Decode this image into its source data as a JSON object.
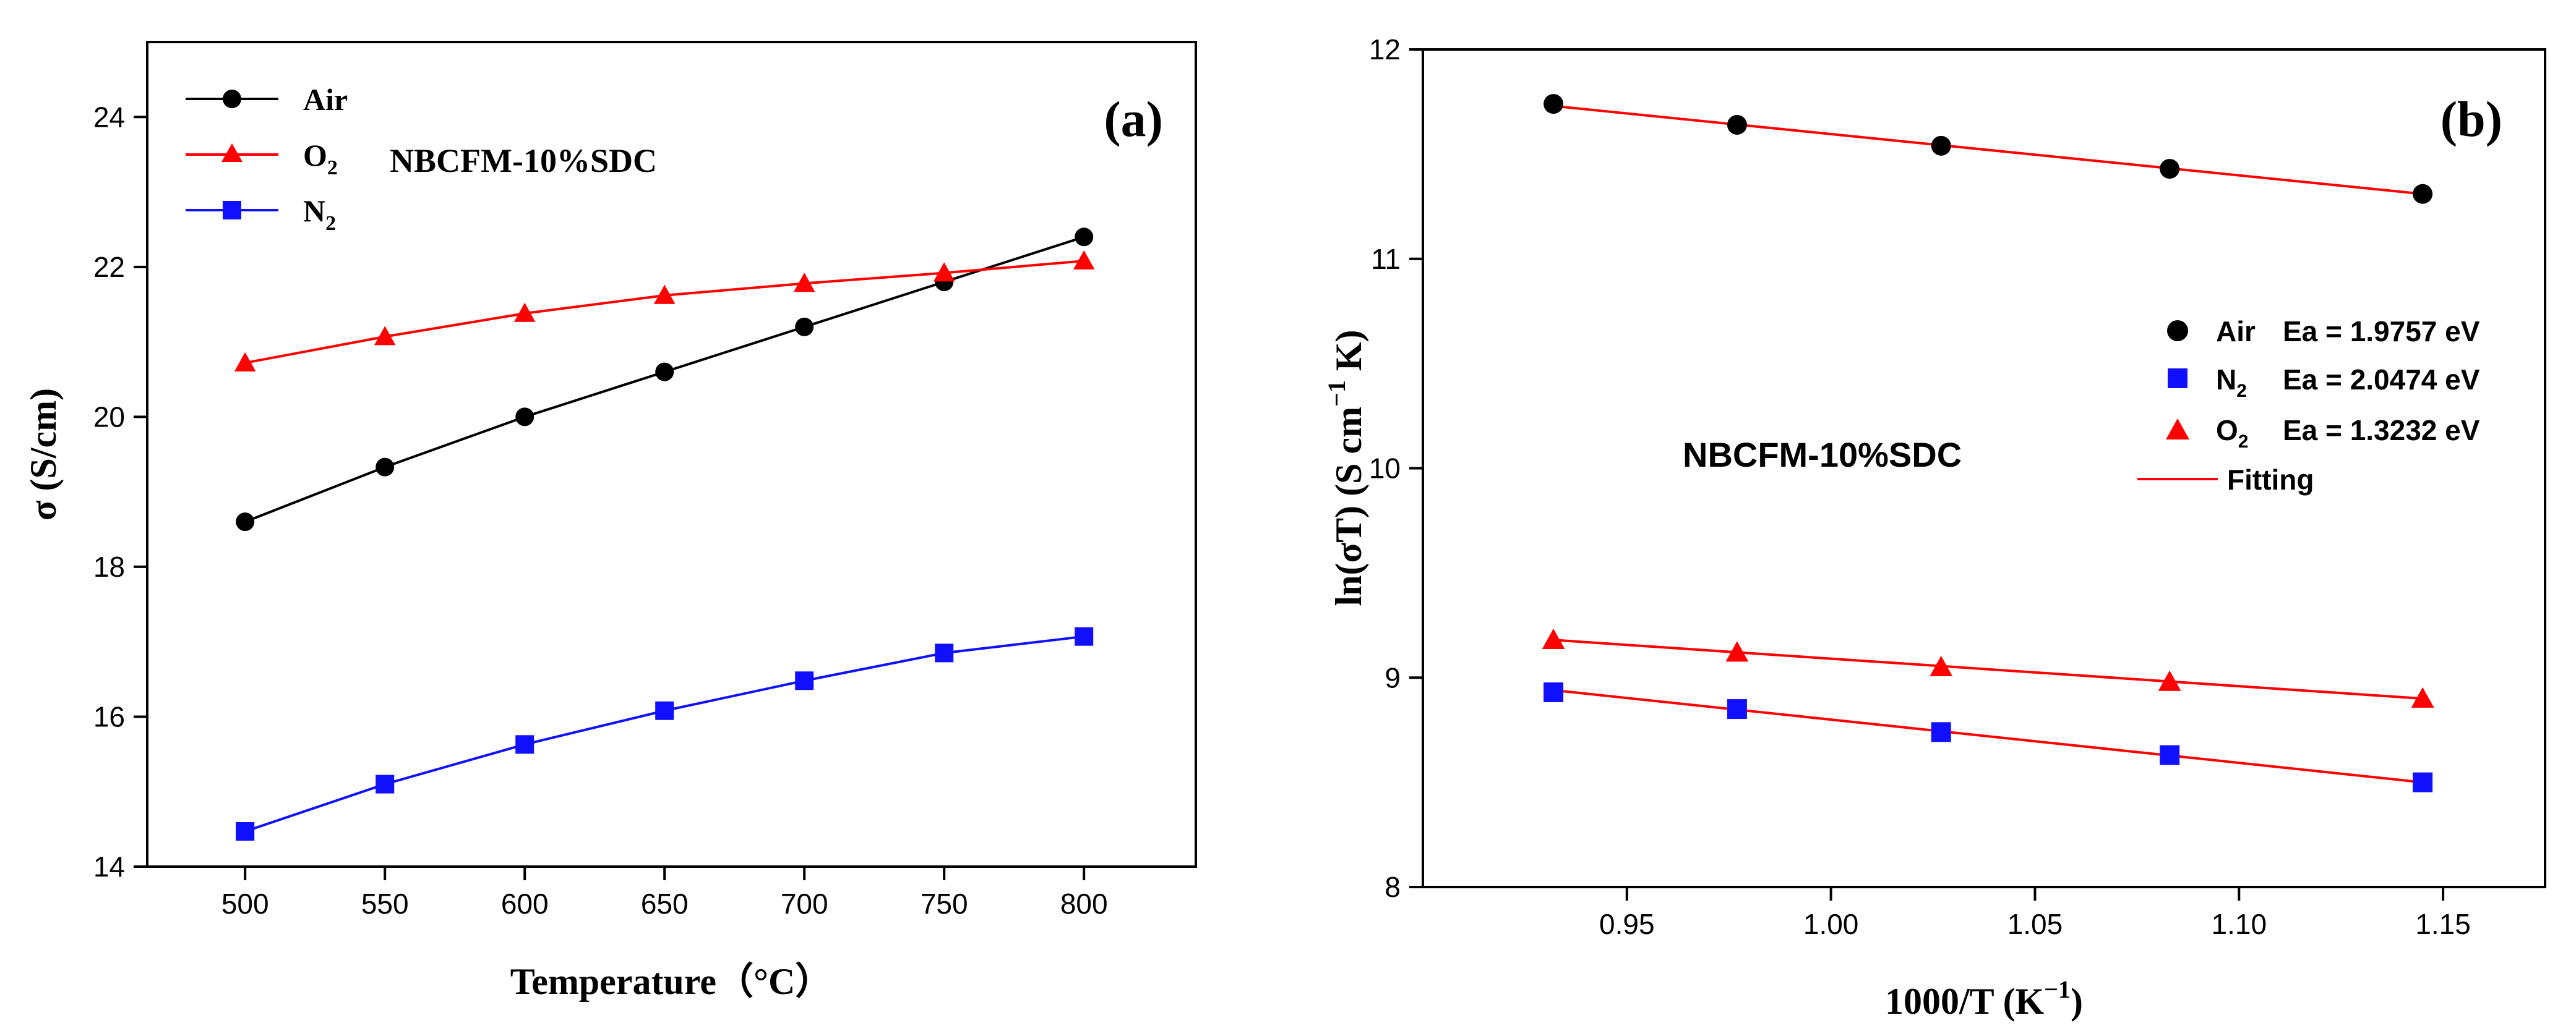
{
  "chart_data": [
    {
      "type": "line",
      "panel_label": "(a)",
      "annotation": "NBCFM-10%SDC",
      "xlabel": "Temperature（°C）",
      "ylabel": "σ (S/cm)",
      "xlim": [
        465,
        840
      ],
      "ylim": [
        14,
        25
      ],
      "xticks": [
        500,
        550,
        600,
        650,
        700,
        750,
        800
      ],
      "xtick_labels": [
        "500",
        "550",
        "600",
        "650",
        "700",
        "750",
        "800"
      ],
      "yticks": [
        14,
        16,
        18,
        20,
        22,
        24
      ],
      "ytick_labels": [
        "14",
        "16",
        "18",
        "20",
        "22",
        "24"
      ],
      "legend_position": "top-left",
      "x": [
        500,
        550,
        600,
        650,
        700,
        750,
        800
      ],
      "series": [
        {
          "name": "Air",
          "label_main": "Air",
          "label_sub": "",
          "marker": "circle",
          "color": "#000000",
          "line_color": "#000000",
          "values": [
            18.6,
            19.33,
            20.0,
            20.6,
            21.2,
            21.8,
            22.4
          ]
        },
        {
          "name": "O2",
          "label_main": "O",
          "label_sub": "2",
          "marker": "triangle",
          "color": "#ff0000",
          "line_color": "#ff0000",
          "values": [
            20.72,
            21.07,
            21.38,
            21.62,
            21.78,
            21.92,
            22.08
          ]
        },
        {
          "name": "N2",
          "label_main": "N",
          "label_sub": "2",
          "marker": "square",
          "color": "#1010ff",
          "line_color": "#1010ff",
          "values": [
            14.47,
            15.1,
            15.63,
            16.08,
            16.48,
            16.85,
            17.07
          ]
        }
      ]
    },
    {
      "type": "scatter",
      "panel_label": "(b)",
      "annotation": "NBCFM-10%SDC",
      "xlabel_main": "1000/T (K",
      "xlabel_sup": "−1",
      "xlabel_end": ")",
      "ylabel_main": "ln(σT) (S cm",
      "ylabel_sup": "−1",
      "ylabel_end": " K)",
      "xlim": [
        0.9,
        1.175
      ],
      "ylim": [
        8,
        12
      ],
      "xticks": [
        0.95,
        1.0,
        1.05,
        1.1,
        1.15
      ],
      "xtick_labels": [
        "0.95",
        "1.00",
        "1.05",
        "1.10",
        "1.15"
      ],
      "yticks": [
        8,
        9,
        10,
        11,
        12
      ],
      "ytick_labels": [
        "8",
        "9",
        "10",
        "11",
        "12"
      ],
      "legend_position": "right",
      "x": [
        0.932,
        0.977,
        1.027,
        1.083,
        1.145
      ],
      "series": [
        {
          "name": "Air",
          "label_main": "Air",
          "label_sub": "",
          "label_ea": "Ea = 1.9757 eV",
          "marker": "circle",
          "color": "#000000",
          "values": [
            11.74,
            11.64,
            11.54,
            11.43,
            11.31
          ],
          "fit": [
            11.73,
            11.31
          ]
        },
        {
          "name": "N2",
          "label_main": "N",
          "label_sub": "2",
          "label_ea": "Ea = 2.0474 eV",
          "marker": "square",
          "color": "#1010ff",
          "values": [
            8.93,
            8.85,
            8.74,
            8.63,
            8.5
          ],
          "fit": [
            8.94,
            8.5
          ]
        },
        {
          "name": "O2",
          "label_main": "O",
          "label_sub": "2",
          "label_ea": "Ea = 1.3232 eV",
          "marker": "triangle",
          "color": "#ff0000",
          "values": [
            9.18,
            9.12,
            9.05,
            8.98,
            8.9
          ],
          "fit": [
            9.18,
            8.9
          ]
        }
      ],
      "fit_label": "Fitting",
      "fit_color": "#ff0000"
    }
  ]
}
